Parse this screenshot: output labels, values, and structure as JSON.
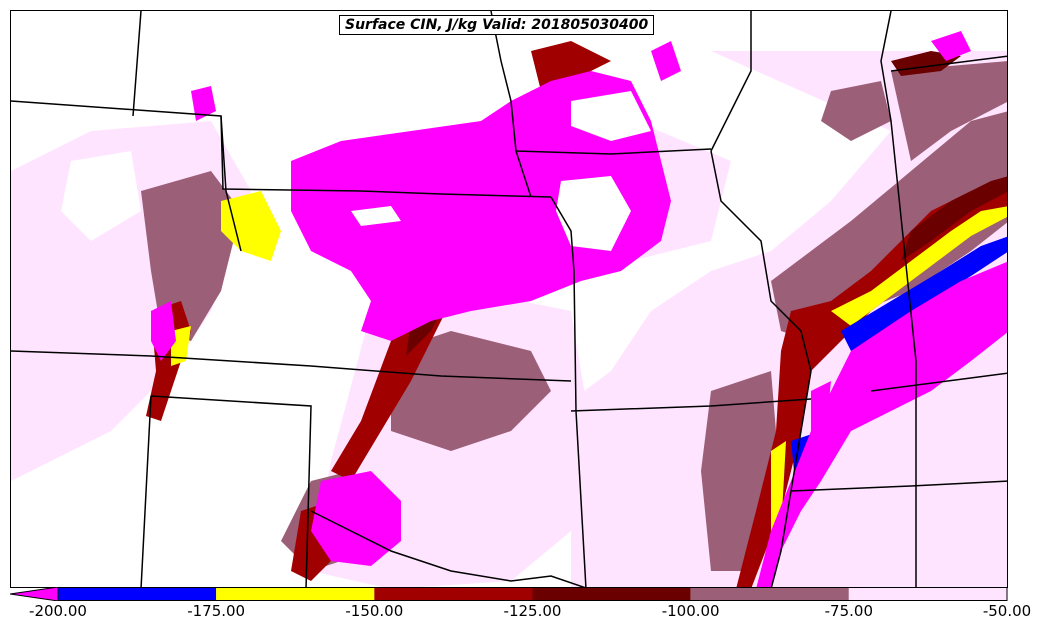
{
  "title": "Surface CIN, J/kg Valid: 201805030400",
  "colorbar": {
    "bins": [
      {
        "from": -200,
        "to": -175,
        "color": "#0000ff"
      },
      {
        "from": -175,
        "to": -150,
        "color": "#ffff00"
      },
      {
        "from": -150,
        "to": -125,
        "color": "#a00000"
      },
      {
        "from": -125,
        "to": -100,
        "color": "#6a0000"
      },
      {
        "from": -100,
        "to": -75,
        "color": "#9c5f78"
      },
      {
        "from": -75,
        "to": -50,
        "color": "#ffe4ff"
      }
    ],
    "below_min_color": "#ff00ff",
    "tick_labels": [
      "-200.00",
      "-175.00",
      "-150.00",
      "-125.00",
      "-100.00",
      "-75.00",
      "-50.00"
    ]
  },
  "legend_colors": {
    "magenta": "#ff00ff",
    "blue": "#0000ff",
    "yellow": "#ffff00",
    "red": "#a00000",
    "dark_red": "#6a0000",
    "mauve": "#9c5f78",
    "light_pink": "#ffe4ff"
  }
}
